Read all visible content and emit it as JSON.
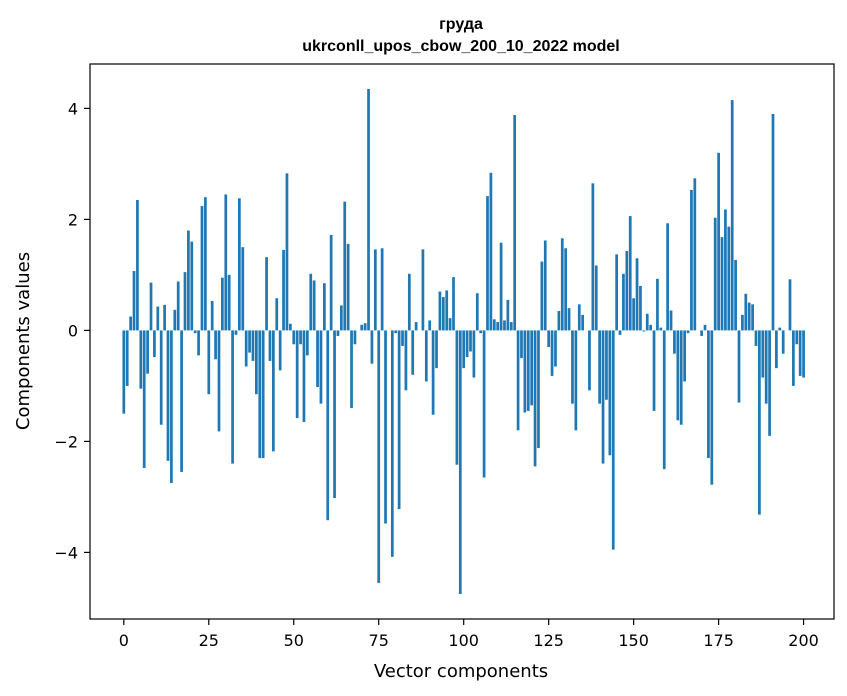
{
  "chart_data": {
    "type": "bar",
    "title": "груда",
    "subtitle": "ukrconll_upos_cbow_200_10_2022 model",
    "xlabel": "Vector components",
    "ylabel": "Components values",
    "xlim": [
      -9.95,
      208.95
    ],
    "ylim": [
      -5.2,
      4.8
    ],
    "xticks": [
      0,
      25,
      50,
      75,
      100,
      125,
      150,
      175,
      200
    ],
    "yticks": [
      -4,
      -2,
      0,
      2,
      4
    ],
    "ytick_labels": [
      "−4",
      "−2",
      "0",
      "2",
      "4"
    ],
    "grid": false,
    "color": "#1f77b4",
    "values": [
      -1.5,
      -1.0,
      0.25,
      1.07,
      2.35,
      -1.05,
      -2.48,
      -0.78,
      0.86,
      -0.48,
      0.43,
      -1.7,
      0.46,
      -2.35,
      -2.75,
      0.37,
      0.88,
      -2.55,
      1.05,
      1.8,
      1.6,
      -0.05,
      -0.45,
      2.24,
      2.4,
      -1.15,
      0.53,
      -0.52,
      -1.82,
      0.95,
      2.45,
      1.0,
      -2.4,
      -0.08,
      2.38,
      1.5,
      -0.65,
      -0.4,
      -0.55,
      -1.15,
      -2.3,
      -2.3,
      1.32,
      -0.55,
      -2.18,
      0.58,
      -0.72,
      1.45,
      2.83,
      0.12,
      -0.25,
      -1.58,
      -0.25,
      -1.65,
      -0.45,
      1.02,
      0.9,
      -1.02,
      -1.32,
      0.85,
      -3.42,
      1.72,
      -3.02,
      -0.1,
      0.45,
      2.32,
      1.56,
      -1.4,
      -0.25,
      0.0,
      0.1,
      0.13,
      4.35,
      -0.6,
      1.46,
      -4.55,
      1.48,
      -3.48,
      0.0,
      -4.08,
      -0.05,
      -3.22,
      -0.28,
      -1.08,
      1.02,
      -0.8,
      0.15,
      0.0,
      1.46,
      -0.92,
      0.18,
      -1.52,
      -0.68,
      0.7,
      0.6,
      0.72,
      0.22,
      0.96,
      -2.42,
      -4.75,
      -0.68,
      -0.48,
      -0.38,
      -0.85,
      0.67,
      -0.05,
      -2.65,
      2.42,
      2.84,
      0.2,
      0.15,
      1.58,
      0.18,
      0.55,
      0.15,
      3.88,
      -1.8,
      -0.5,
      -1.48,
      -1.45,
      -1.35,
      -2.45,
      -2.12,
      1.24,
      1.62,
      -0.3,
      -0.82,
      -0.65,
      0.35,
      1.66,
      1.48,
      0.4,
      -1.32,
      -1.8,
      0.47,
      0.28,
      0.0,
      -1.08,
      2.65,
      1.17,
      -1.32,
      -2.4,
      -1.25,
      -2.25,
      -3.95,
      1.37,
      -0.08,
      1.02,
      1.43,
      2.06,
      0.58,
      1.3,
      0.8,
      -0.02,
      0.3,
      0.1,
      -1.45,
      0.93,
      0.05,
      -2.5,
      1.93,
      0.36,
      -0.42,
      -1.62,
      -1.7,
      -0.92,
      -0.05,
      2.53,
      2.74,
      0.0,
      -0.1,
      0.1,
      -2.3,
      -2.78,
      2.03,
      3.2,
      1.68,
      2.18,
      1.87,
      4.15,
      1.27,
      -1.3,
      0.28,
      0.66,
      0.5,
      0.47,
      -0.28,
      -3.32,
      -0.85,
      -1.32,
      -1.9,
      3.9,
      -0.68,
      0.05,
      -0.42,
      0.0,
      0.92,
      -1.0,
      -0.25,
      -0.82,
      -0.85
    ]
  }
}
